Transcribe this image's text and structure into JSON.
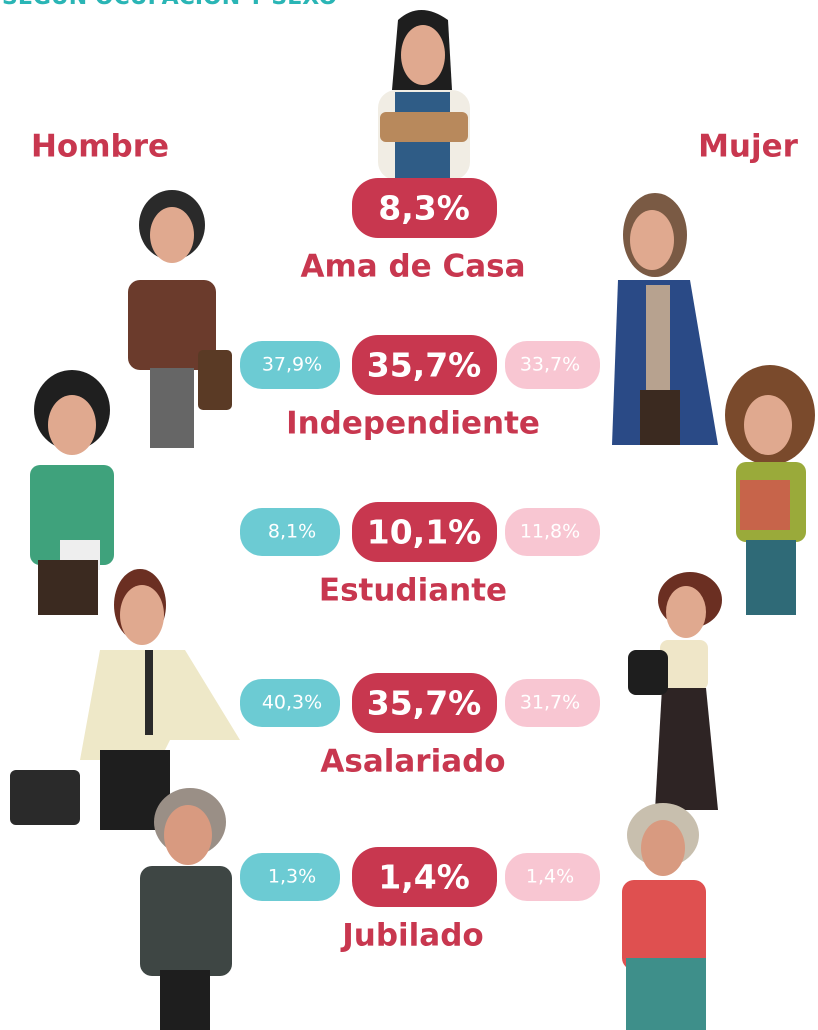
{
  "header": {
    "title": "SEGÚN OCUPACIÓN Y SEXO",
    "left": "Hombre",
    "right": "Mujer"
  },
  "rows": [
    {
      "label": "Ama de Casa",
      "total": "8,3%"
    },
    {
      "label": "Independiente",
      "total": "35,7%",
      "hombre": "37,9%",
      "mujer": "33,7%"
    },
    {
      "label": "Estudiante",
      "total": "10,1%",
      "hombre": "8,1%",
      "mujer": "11,8%"
    },
    {
      "label": "Asalariado",
      "total": "35,7%",
      "hombre": "40,3%",
      "mujer": "31,7%"
    },
    {
      "label": "Jubilado",
      "total": "1,4%",
      "hombre": "1,3%",
      "mujer": "1,4%"
    }
  ]
}
